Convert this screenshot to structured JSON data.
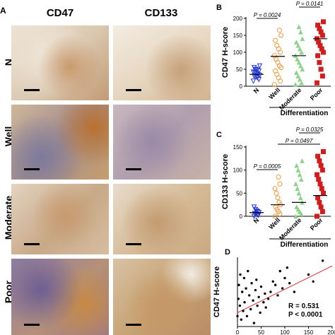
{
  "panel_a": {
    "letter": "A",
    "columns": [
      "CD47",
      "CD133"
    ],
    "rows": [
      "N",
      "Well",
      "Moderate",
      "Poor"
    ]
  },
  "panel_b": {
    "letter": "B",
    "ylabel": "CD47  H-score",
    "yticks": [
      "0",
      "50",
      "100",
      "150",
      "200"
    ],
    "categories": [
      "N",
      "Well",
      "Moderate",
      "Poor"
    ],
    "xgroup_label": "Differentiation",
    "pvalues": [
      "P = 0.0024",
      "P = 0.0141"
    ],
    "colors": {
      "N": "#2233cc",
      "Well": "#e89a45",
      "Moderate": "#8ed18e",
      "Poor": "#cc1f1f"
    }
  },
  "panel_c": {
    "letter": "C",
    "ylabel": "CD133  H-score",
    "yticks": [
      "0",
      "50",
      "100",
      "150"
    ],
    "categories": [
      "N",
      "Well",
      "Moderate",
      "Poor"
    ],
    "xgroup_label": "Differentiation",
    "pvalues": [
      "P = 0.0005",
      "P = 0.0497",
      "P = 0.0325"
    ]
  },
  "panel_d": {
    "letter": "D",
    "ylabel": "CD47  H-score",
    "xticks": [
      "0",
      "50",
      "100",
      "150",
      "200"
    ],
    "r_text": "R = 0.531",
    "p_text": "P < 0.0001"
  },
  "chart_data": [
    {
      "type": "scatter",
      "title": "",
      "ylabel": "CD47 H-score",
      "categories": [
        "N",
        "Well",
        "Moderate",
        "Poor"
      ],
      "ylim": [
        0,
        200
      ],
      "series": [
        {
          "name": "N",
          "values": [
            15,
            20,
            25,
            28,
            30,
            32,
            35,
            38,
            40,
            42,
            45,
            48,
            50,
            55,
            60
          ],
          "mean": 35
        },
        {
          "name": "Well",
          "values": [
            5,
            15,
            25,
            35,
            45,
            55,
            60,
            70,
            80,
            90,
            100,
            110,
            120,
            135,
            150,
            165
          ],
          "mean": 88
        },
        {
          "name": "Moderate",
          "values": [
            5,
            10,
            20,
            30,
            40,
            50,
            60,
            70,
            80,
            90,
            100,
            110,
            120,
            130,
            140,
            160,
            175
          ],
          "mean": 90
        },
        {
          "name": "Poor",
          "values": [
            10,
            30,
            50,
            70,
            90,
            100,
            110,
            120,
            130,
            140,
            150,
            160,
            170,
            180,
            190
          ],
          "mean": 140
        }
      ],
      "pvalues": [
        "P = 0.0024",
        "P = 0.0141"
      ]
    },
    {
      "type": "scatter",
      "title": "",
      "ylabel": "CD133 H-score",
      "categories": [
        "N",
        "Well",
        "Moderate",
        "Poor"
      ],
      "ylim": [
        0,
        150
      ],
      "series": [
        {
          "name": "N",
          "values": [
            0,
            2,
            3,
            5,
            6,
            8,
            10,
            12,
            15,
            20
          ],
          "mean": 8
        },
        {
          "name": "Well",
          "values": [
            0,
            5,
            10,
            15,
            20,
            25,
            30,
            40,
            50,
            60,
            70,
            85
          ],
          "mean": 25
        },
        {
          "name": "Moderate",
          "values": [
            0,
            5,
            10,
            15,
            20,
            30,
            40,
            50,
            60,
            70,
            80,
            90,
            100,
            110,
            120
          ],
          "mean": 30
        },
        {
          "name": "Poor",
          "values": [
            0,
            10,
            20,
            30,
            40,
            50,
            60,
            70,
            80,
            90,
            100,
            110,
            120,
            130,
            140
          ],
          "mean": 45
        }
      ],
      "pvalues": [
        "P = 0.0005",
        "P = 0.0497",
        "P = 0.0325"
      ]
    },
    {
      "type": "scatter",
      "title": "",
      "ylabel": "CD47 H-score",
      "xlim": [
        0,
        200
      ],
      "trend_line": [
        [
          0,
          40
        ],
        [
          200,
          175
        ]
      ],
      "points": [
        [
          0,
          30
        ],
        [
          2,
          80
        ],
        [
          3,
          120
        ],
        [
          5,
          60
        ],
        [
          6,
          150
        ],
        [
          8,
          20
        ],
        [
          10,
          100
        ],
        [
          12,
          45
        ],
        [
          14,
          140
        ],
        [
          15,
          70
        ],
        [
          18,
          110
        ],
        [
          20,
          30
        ],
        [
          22,
          160
        ],
        [
          25,
          90
        ],
        [
          28,
          50
        ],
        [
          30,
          125
        ],
        [
          33,
          75
        ],
        [
          35,
          10
        ],
        [
          38,
          105
        ],
        [
          40,
          135
        ],
        [
          42,
          60
        ],
        [
          45,
          85
        ],
        [
          48,
          40
        ],
        [
          50,
          115
        ],
        [
          55,
          70
        ],
        [
          58,
          95
        ],
        [
          60,
          55
        ],
        [
          65,
          80
        ],
        [
          70,
          100
        ],
        [
          75,
          130
        ],
        [
          80,
          120
        ],
        [
          85,
          90
        ],
        [
          90,
          160
        ],
        [
          95,
          110
        ],
        [
          100,
          140
        ],
        [
          105,
          170
        ],
        [
          110,
          125
        ],
        [
          120,
          100
        ],
        [
          150,
          150
        ],
        [
          160,
          130
        ],
        [
          180,
          190
        ]
      ],
      "r_text": "R = 0.531",
      "p_text": "P < 0.0001"
    }
  ]
}
